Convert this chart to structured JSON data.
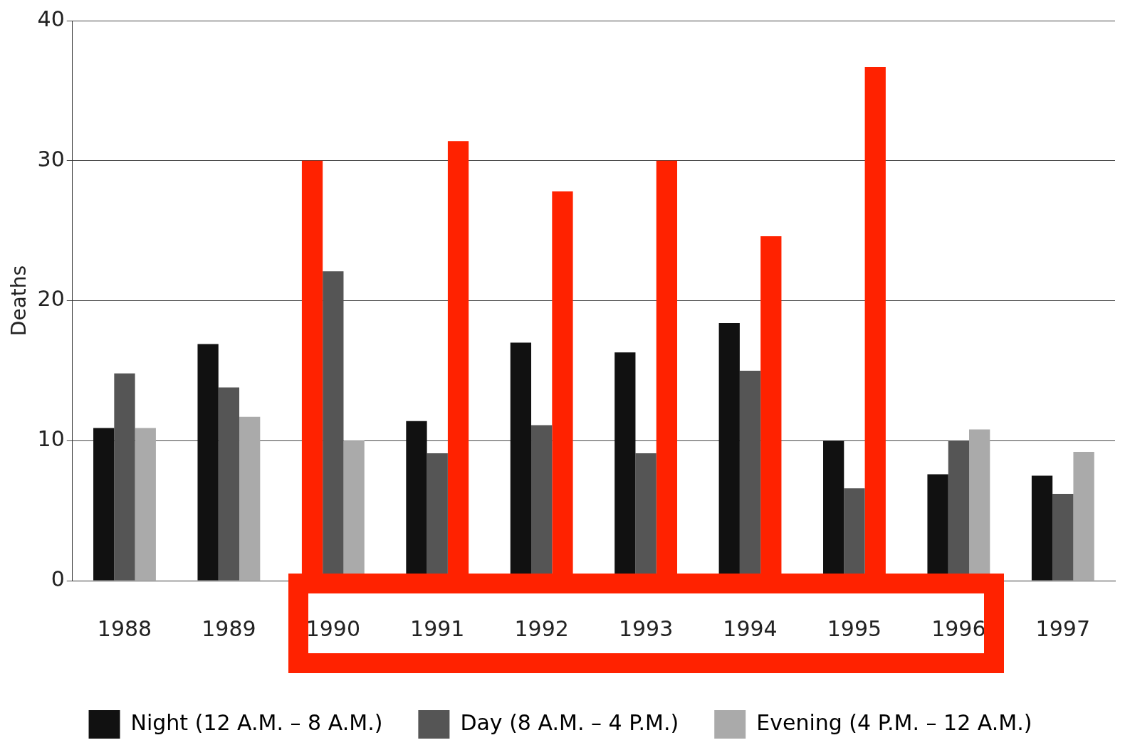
{
  "chart_data": {
    "type": "bar",
    "ylabel": "Deaths",
    "categories": [
      "1988",
      "1989",
      "1990",
      "1991",
      "1992",
      "1993",
      "1994",
      "1995",
      "1996",
      "1997"
    ],
    "series": [
      {
        "name": "Night (12 A.M. – 8 A.M.)",
        "color": "#111111",
        "values": [
          10.9,
          16.9,
          30,
          11.4,
          17,
          16.3,
          18.4,
          10,
          7.6,
          7.5
        ],
        "colors": [
          "#111111",
          "#111111",
          "#ff2200",
          "#111111",
          "#111111",
          "#111111",
          "#111111",
          "#111111",
          "#111111",
          "#111111"
        ]
      },
      {
        "name": "Day (8 A.M. – 4 P.M.)",
        "color": "#555555",
        "values": [
          14.8,
          13.8,
          22.1,
          9.1,
          11.1,
          9.1,
          15,
          6.6,
          10,
          6.2
        ]
      },
      {
        "name": "Evening (4 P.M. – 12 A.M.)",
        "color": "#aaaaaa",
        "values": [
          10.9,
          11.7,
          10,
          31.4,
          27.8,
          30,
          24.6,
          36.7,
          10.8,
          9.2
        ],
        "colors": [
          "#aaaaaa",
          "#aaaaaa",
          "#aaaaaa",
          "#ff2200",
          "#ff2200",
          "#ff2200",
          "#ff2200",
          "#ff2200",
          "#aaaaaa",
          "#aaaaaa"
        ]
      }
    ],
    "ylim": [
      0,
      40
    ],
    "yticks": [
      0,
      10,
      20,
      30,
      40
    ],
    "grid": "y",
    "legend": "bottom"
  }
}
